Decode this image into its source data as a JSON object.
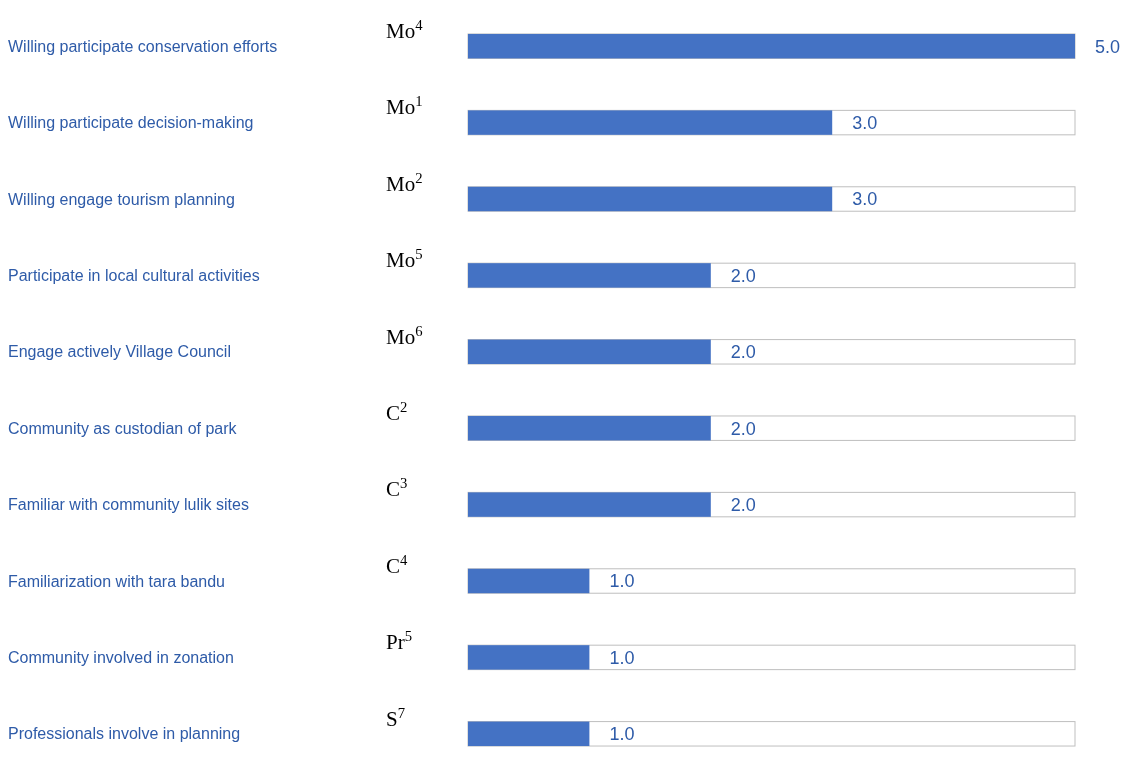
{
  "chart_data": {
    "type": "bar",
    "orientation": "horizontal",
    "categories": [
      "Willing participate conservation efforts",
      "Willing participate decision-making",
      "Willing engage tourism planning",
      "Participate in local cultural activities",
      "Engage actively Village Council",
      "Community as custodian of park",
      "Familiar with community lulik sites",
      "Familiarization with tara bandu",
      "Community involved in zonation",
      "Professionals involve in planning"
    ],
    "values": [
      5,
      3,
      3,
      2,
      2,
      2,
      2,
      1,
      1,
      1
    ],
    "value_labels": [
      "5.0",
      "3.0",
      "3.0",
      "2.0",
      "2.0",
      "2.0",
      "2.0",
      "1.0",
      "1.0",
      "1.0"
    ],
    "color": "#4472c4",
    "xlim": [
      0,
      5
    ],
    "tick_labels": false,
    "annotations": [
      "Mo$^{4}$",
      "Mo$^{1}$",
      "Mo$^{2}$",
      "Mo$^{5}$",
      "Mo$^{6}$",
      "C$^{2}$",
      "C$^{3}$",
      "C$^{4}$",
      "Pr$^{5}$",
      "S$^{7}$"
    ]
  }
}
